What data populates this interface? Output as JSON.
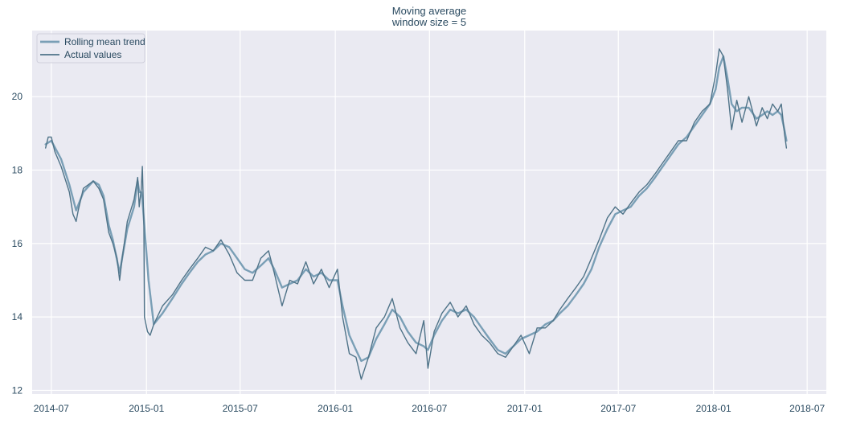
{
  "chart_data": {
    "type": "line",
    "title_lines": [
      "Moving average",
      "window size = 5"
    ],
    "xlabel": "",
    "ylabel": "",
    "x_tick_labels": [
      "2014-07",
      "2015-01",
      "2015-07",
      "2016-01",
      "2016-07",
      "2017-01",
      "2017-07",
      "2018-01",
      "2018-07"
    ],
    "x_ticks": [
      "2014-07-01",
      "2015-01-01",
      "2015-07-01",
      "2016-01-01",
      "2016-07-01",
      "2017-01-01",
      "2017-07-01",
      "2018-01-01",
      "2018-07-01"
    ],
    "xlim": [
      "2014-05-25",
      "2018-08-07"
    ],
    "y_ticks": [
      12,
      14,
      16,
      18,
      20
    ],
    "ylim": [
      11.9,
      21.8
    ],
    "grid": true,
    "legend_position": "top-left",
    "colors": {
      "plot_background": "#eaeaf2",
      "grid": "#ffffff",
      "tick_text": "#2a4a60",
      "title_text": "#2a4a60",
      "rolling_line": "#7a9fb6",
      "actual_line": "#4f7388"
    },
    "series": [
      {
        "name": "Rolling mean trend",
        "x": [
          "2014-06-20",
          "2014-07-01",
          "2014-07-20",
          "2014-08-05",
          "2014-08-18",
          "2014-09-01",
          "2014-09-20",
          "2014-10-01",
          "2014-10-10",
          "2014-10-20",
          "2014-10-28",
          "2014-11-10",
          "2014-11-25",
          "2014-12-08",
          "2014-12-15",
          "2014-12-18",
          "2014-12-22",
          "2014-12-24",
          "2015-01-05",
          "2015-01-15",
          "2015-02-01",
          "2015-02-20",
          "2015-03-10",
          "2015-03-25",
          "2015-04-10",
          "2015-04-25",
          "2015-05-10",
          "2015-05-25",
          "2015-06-10",
          "2015-06-25",
          "2015-07-10",
          "2015-07-25",
          "2015-08-10",
          "2015-08-25",
          "2015-09-05",
          "2015-09-20",
          "2015-10-05",
          "2015-10-20",
          "2015-11-05",
          "2015-11-20",
          "2015-12-05",
          "2015-12-20",
          "2016-01-05",
          "2016-01-15",
          "2016-01-28",
          "2016-02-10",
          "2016-02-20",
          "2016-03-05",
          "2016-03-20",
          "2016-04-05",
          "2016-04-20",
          "2016-05-05",
          "2016-05-20",
          "2016-06-05",
          "2016-06-20",
          "2016-06-28",
          "2016-07-10",
          "2016-07-25",
          "2016-08-10",
          "2016-08-25",
          "2016-09-10",
          "2016-09-25",
          "2016-10-10",
          "2016-10-25",
          "2016-11-10",
          "2016-11-25",
          "2016-12-10",
          "2016-12-25",
          "2017-01-10",
          "2017-01-25",
          "2017-02-10",
          "2017-02-25",
          "2017-03-10",
          "2017-03-25",
          "2017-04-10",
          "2017-04-25",
          "2017-05-10",
          "2017-05-25",
          "2017-06-10",
          "2017-06-25",
          "2017-07-10",
          "2017-07-25",
          "2017-08-10",
          "2017-08-25",
          "2017-09-10",
          "2017-09-25",
          "2017-10-10",
          "2017-10-25",
          "2017-11-10",
          "2017-11-25",
          "2017-12-10",
          "2017-12-25",
          "2018-01-05",
          "2018-01-12",
          "2018-01-20",
          "2018-01-28",
          "2018-02-05",
          "2018-02-15",
          "2018-02-25",
          "2018-03-10",
          "2018-03-25",
          "2018-04-05",
          "2018-04-15",
          "2018-04-25",
          "2018-05-05",
          "2018-05-12",
          "2018-05-18",
          "2018-05-22"
        ],
        "y": [
          18.7,
          18.8,
          18.3,
          17.6,
          16.9,
          17.4,
          17.7,
          17.6,
          17.3,
          16.5,
          16.1,
          15.2,
          16.4,
          17.0,
          17.7,
          17.4,
          17.4,
          17.2,
          15.0,
          13.8,
          14.1,
          14.5,
          14.9,
          15.2,
          15.5,
          15.7,
          15.8,
          16.0,
          15.9,
          15.6,
          15.3,
          15.2,
          15.4,
          15.6,
          15.3,
          14.8,
          14.9,
          15.0,
          15.3,
          15.1,
          15.2,
          15.0,
          15.0,
          14.3,
          13.5,
          13.1,
          12.8,
          12.9,
          13.4,
          13.8,
          14.2,
          14.0,
          13.6,
          13.3,
          13.2,
          13.1,
          13.5,
          13.9,
          14.2,
          14.1,
          14.2,
          14.0,
          13.7,
          13.4,
          13.1,
          13.0,
          13.2,
          13.4,
          13.5,
          13.6,
          13.8,
          13.9,
          14.1,
          14.3,
          14.6,
          14.9,
          15.3,
          15.9,
          16.4,
          16.8,
          16.9,
          17.0,
          17.3,
          17.5,
          17.8,
          18.1,
          18.4,
          18.7,
          18.9,
          19.2,
          19.5,
          19.8,
          20.2,
          20.8,
          21.1,
          20.5,
          19.8,
          19.6,
          19.7,
          19.7,
          19.4,
          19.5,
          19.6,
          19.5,
          19.6,
          19.5,
          19.1,
          18.8
        ]
      },
      {
        "name": "Actual values",
        "x": [
          "2014-06-20",
          "2014-06-25",
          "2014-07-01",
          "2014-07-08",
          "2014-07-20",
          "2014-08-05",
          "2014-08-12",
          "2014-08-18",
          "2014-08-22",
          "2014-09-01",
          "2014-09-20",
          "2014-10-01",
          "2014-10-10",
          "2014-10-20",
          "2014-10-28",
          "2014-11-05",
          "2014-11-10",
          "2014-11-15",
          "2014-11-25",
          "2014-12-08",
          "2014-12-15",
          "2014-12-18",
          "2014-12-22",
          "2014-12-24",
          "2014-12-27",
          "2014-12-28",
          "2015-01-03",
          "2015-01-08",
          "2015-01-15",
          "2015-02-01",
          "2015-02-20",
          "2015-03-10",
          "2015-03-25",
          "2015-04-10",
          "2015-04-25",
          "2015-05-10",
          "2015-05-25",
          "2015-06-10",
          "2015-06-25",
          "2015-07-10",
          "2015-07-25",
          "2015-08-10",
          "2015-08-25",
          "2015-09-05",
          "2015-09-20",
          "2015-10-05",
          "2015-10-20",
          "2015-11-05",
          "2015-11-20",
          "2015-12-05",
          "2015-12-20",
          "2016-01-05",
          "2016-01-15",
          "2016-01-28",
          "2016-02-10",
          "2016-02-20",
          "2016-03-05",
          "2016-03-20",
          "2016-04-05",
          "2016-04-20",
          "2016-05-05",
          "2016-05-20",
          "2016-06-05",
          "2016-06-20",
          "2016-06-28",
          "2016-07-10",
          "2016-07-25",
          "2016-08-10",
          "2016-08-25",
          "2016-09-10",
          "2016-09-25",
          "2016-10-10",
          "2016-10-25",
          "2016-11-10",
          "2016-11-25",
          "2016-12-10",
          "2016-12-25",
          "2017-01-10",
          "2017-01-25",
          "2017-02-10",
          "2017-02-25",
          "2017-03-10",
          "2017-03-25",
          "2017-04-10",
          "2017-04-25",
          "2017-05-10",
          "2017-05-25",
          "2017-06-10",
          "2017-06-25",
          "2017-07-10",
          "2017-07-25",
          "2017-08-10",
          "2017-08-25",
          "2017-09-10",
          "2017-09-25",
          "2017-10-10",
          "2017-10-25",
          "2017-11-10",
          "2017-11-25",
          "2017-12-10",
          "2017-12-25",
          "2018-01-05",
          "2018-01-12",
          "2018-01-20",
          "2018-01-28",
          "2018-02-05",
          "2018-02-15",
          "2018-02-25",
          "2018-03-10",
          "2018-03-25",
          "2018-04-05",
          "2018-04-15",
          "2018-04-25",
          "2018-05-05",
          "2018-05-12",
          "2018-05-18",
          "2018-05-22"
        ],
        "y": [
          18.6,
          18.9,
          18.9,
          18.5,
          18.1,
          17.4,
          16.8,
          16.6,
          16.9,
          17.5,
          17.7,
          17.5,
          17.2,
          16.3,
          16.0,
          15.6,
          15.0,
          15.6,
          16.6,
          17.2,
          17.8,
          17.0,
          17.5,
          18.1,
          16.5,
          14.0,
          13.6,
          13.5,
          13.8,
          14.3,
          14.6,
          15.0,
          15.3,
          15.6,
          15.9,
          15.8,
          16.1,
          15.7,
          15.2,
          15.0,
          15.0,
          15.6,
          15.8,
          15.2,
          14.3,
          15.0,
          14.9,
          15.5,
          14.9,
          15.3,
          14.8,
          15.3,
          14.0,
          13.0,
          12.9,
          12.3,
          12.9,
          13.7,
          14.0,
          14.5,
          13.7,
          13.3,
          13.0,
          13.9,
          12.6,
          13.6,
          14.1,
          14.4,
          14.0,
          14.3,
          13.8,
          13.5,
          13.3,
          13.0,
          12.9,
          13.2,
          13.5,
          13.0,
          13.7,
          13.7,
          13.9,
          14.2,
          14.5,
          14.8,
          15.1,
          15.6,
          16.1,
          16.7,
          17.0,
          16.8,
          17.1,
          17.4,
          17.6,
          17.9,
          18.2,
          18.5,
          18.8,
          18.8,
          19.3,
          19.6,
          19.8,
          20.6,
          21.3,
          21.1,
          20.2,
          19.1,
          19.9,
          19.3,
          20.0,
          19.2,
          19.7,
          19.4,
          19.8,
          19.6,
          19.8,
          19.0,
          18.6
        ]
      }
    ]
  }
}
